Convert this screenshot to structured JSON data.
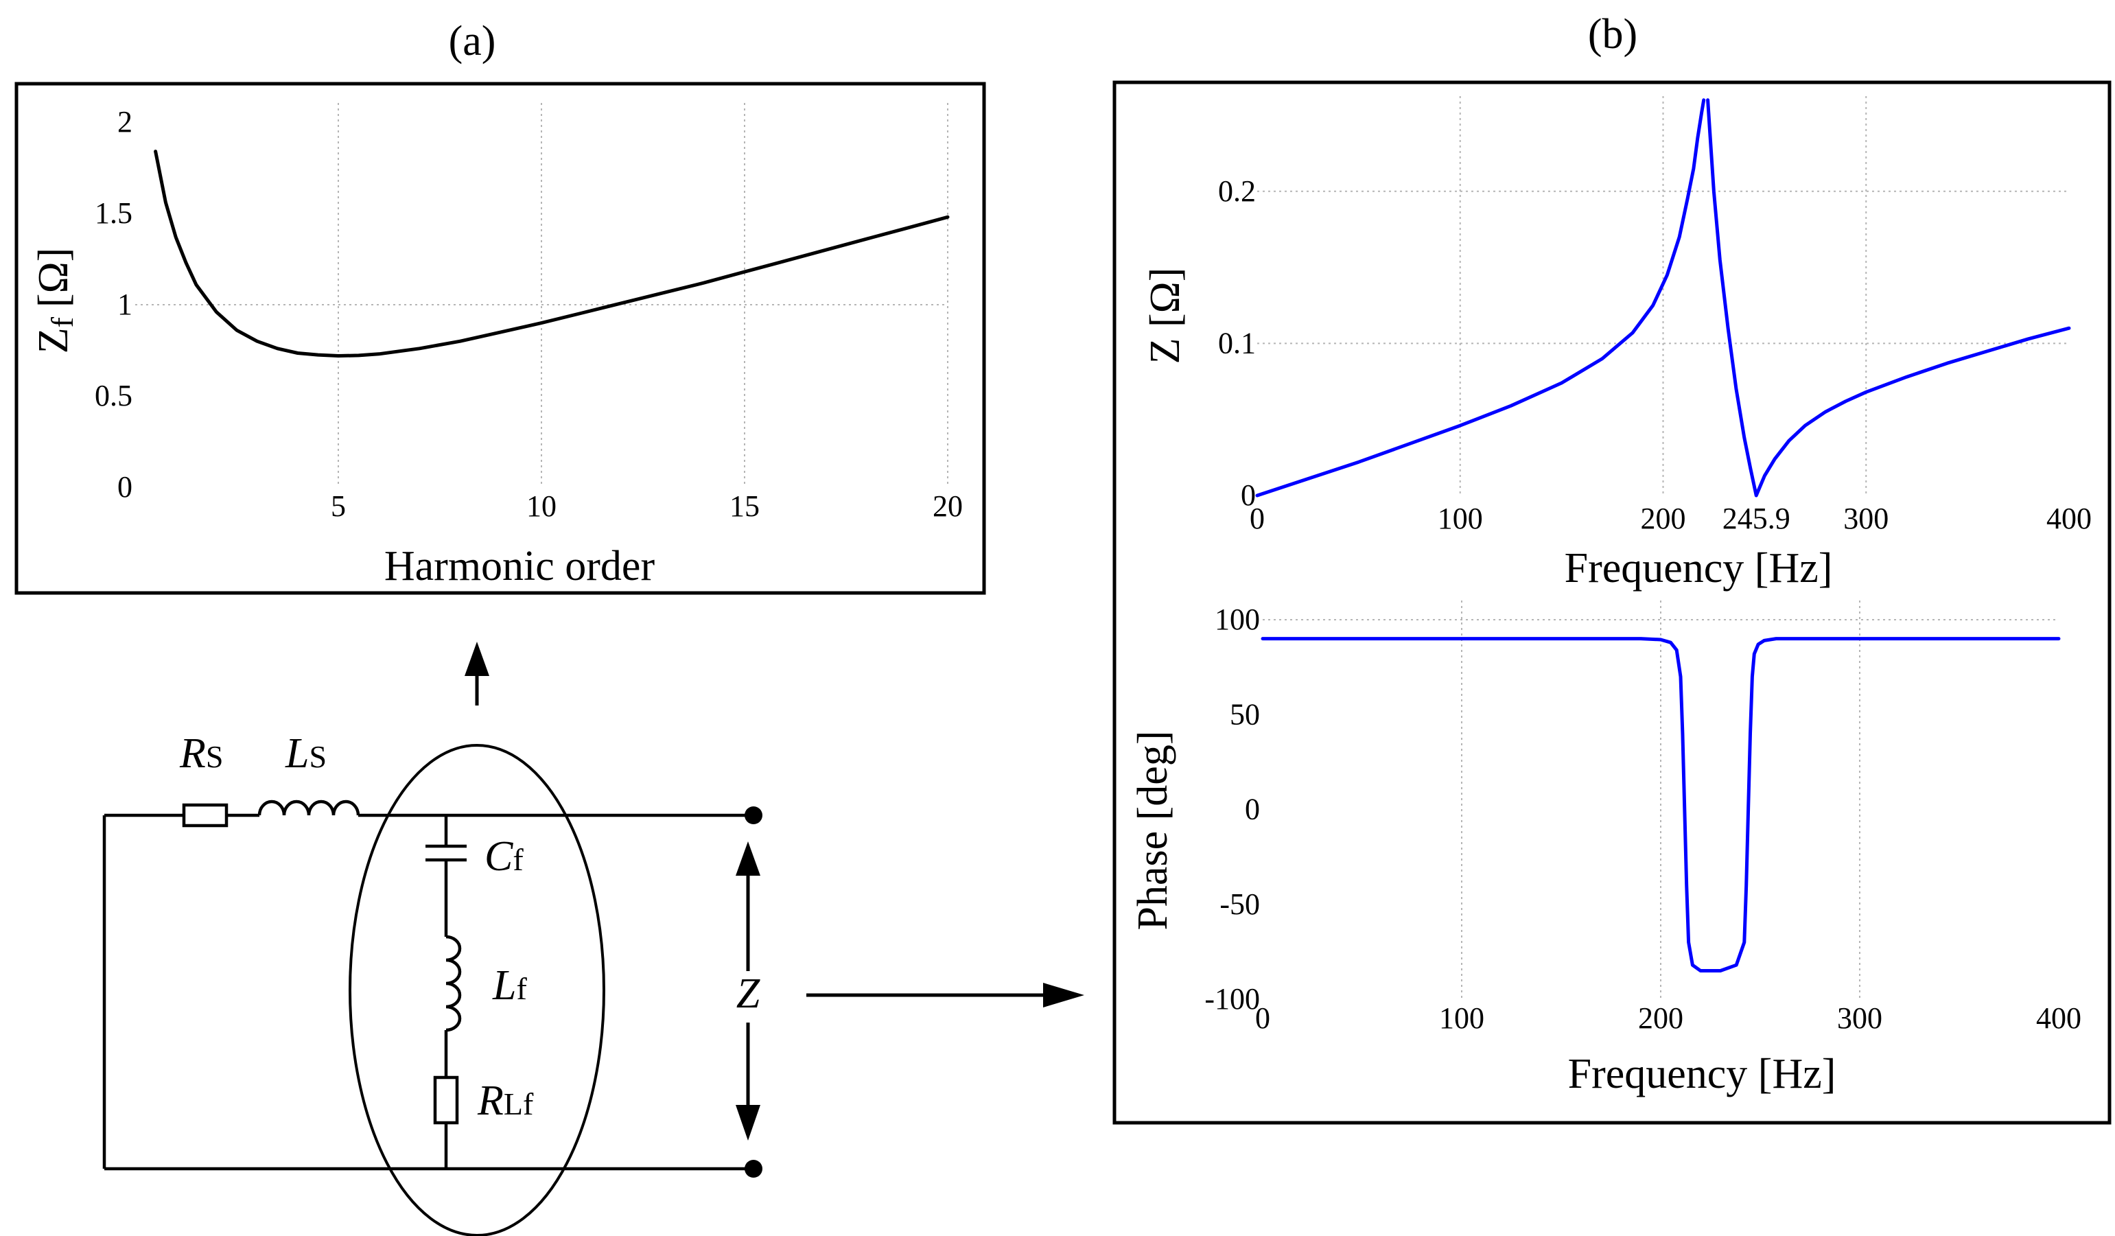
{
  "panel_labels": {
    "a": "(a)",
    "b": "(b)"
  },
  "circuit": {
    "rs": {
      "main": "R",
      "sub": "S"
    },
    "ls": {
      "main": "L",
      "sub": "S"
    },
    "cf": {
      "main": "C",
      "sub": "f"
    },
    "lf": {
      "main": "L",
      "sub": "f"
    },
    "rlf": {
      "main": "R",
      "sub": "Lf"
    },
    "z": "Z"
  },
  "colors": {
    "curve_a": "#000000",
    "curve_b": "#0000ff",
    "frame": "#000000",
    "grid": "#b5b5b5"
  },
  "chart_data": [
    {
      "id": "a",
      "type": "line",
      "xlabel": "Harmonic order",
      "ylabel": {
        "main": "Z",
        "sub": "f",
        "unit": "[Ω]"
      },
      "xlim": [
        0,
        20
      ],
      "ylim": [
        0,
        2
      ],
      "xticks": [
        5,
        10,
        15,
        20
      ],
      "yticks": [
        0,
        0.5,
        1,
        1.5,
        2
      ],
      "ytick_labels": [
        "0",
        "0.5",
        "1",
        "1.5",
        "2"
      ],
      "xgrid": [
        5,
        10,
        15,
        20
      ],
      "ygrid": [
        1
      ],
      "series": [
        {
          "x": [
            0.5,
            0.75,
            1,
            1.25,
            1.5,
            2,
            2.5,
            3,
            3.5,
            4,
            4.5,
            5,
            5.5,
            6,
            7,
            8,
            9,
            10,
            11,
            12,
            13,
            14,
            15,
            16,
            17,
            18,
            19,
            20
          ],
          "values": [
            1.84,
            1.56,
            1.37,
            1.23,
            1.11,
            0.96,
            0.86,
            0.8,
            0.76,
            0.735,
            0.725,
            0.72,
            0.722,
            0.73,
            0.76,
            0.8,
            0.85,
            0.9,
            0.955,
            1.01,
            1.065,
            1.12,
            1.18,
            1.24,
            1.3,
            1.36,
            1.42,
            1.48
          ]
        }
      ]
    },
    {
      "id": "b-top",
      "type": "line",
      "xlabel": "Frequency [Hz]",
      "ylabel": "Z [Ω]",
      "xlim": [
        0,
        400
      ],
      "ylim": [
        0,
        0.25
      ],
      "xticks": [
        0,
        100,
        200,
        245.9,
        300,
        400
      ],
      "xtick_labels": [
        "0",
        "100",
        "200",
        "245.9",
        "300",
        "400"
      ],
      "yticks": [
        0,
        0.1,
        0.2
      ],
      "ytick_labels": [
        "0",
        "0.1",
        "0.2"
      ],
      "xgrid": [
        100,
        200,
        300
      ],
      "ygrid": [
        0.1,
        0.2
      ],
      "series": [
        {
          "x": [
            0,
            25,
            50,
            75,
            100,
            125,
            150,
            170,
            185,
            195,
            202,
            208,
            212,
            215,
            217,
            219,
            220
          ],
          "values": [
            0,
            0.011,
            0.022,
            0.034,
            0.046,
            0.059,
            0.074,
            0.09,
            0.107,
            0.125,
            0.145,
            0.17,
            0.195,
            0.215,
            0.235,
            0.252,
            0.26
          ]
        },
        {
          "x": [
            222,
            223,
            225,
            228,
            232,
            236,
            240,
            243,
            245.9,
            250,
            255,
            262,
            270,
            280,
            290,
            300,
            320,
            340,
            360,
            380,
            400
          ],
          "values": [
            0.26,
            0.24,
            0.2,
            0.155,
            0.11,
            0.07,
            0.038,
            0.018,
            0,
            0.013,
            0.024,
            0.036,
            0.046,
            0.055,
            0.062,
            0.068,
            0.078,
            0.087,
            0.095,
            0.103,
            0.11
          ]
        }
      ]
    },
    {
      "id": "b-bottom",
      "type": "line",
      "xlabel": "Frequency [Hz]",
      "ylabel": "Phase [deg]",
      "xlim": [
        0,
        400
      ],
      "ylim": [
        -100,
        100
      ],
      "xticks": [
        0,
        100,
        200,
        300,
        400
      ],
      "xtick_labels": [
        "0",
        "100",
        "200",
        "300",
        "400"
      ],
      "yticks": [
        -100,
        -50,
        0,
        50,
        100
      ],
      "ytick_labels": [
        "-100",
        "-50",
        "0",
        "50",
        "100"
      ],
      "xgrid": [
        100,
        200,
        300
      ],
      "ygrid": [
        100
      ],
      "series": [
        {
          "x": [
            0,
            100,
            190,
            200,
            205,
            208,
            210,
            211,
            212,
            213,
            214,
            216,
            220,
            230,
            238,
            242,
            243,
            244,
            245,
            246,
            247,
            249,
            252,
            258,
            270,
            300,
            400
          ],
          "values": [
            90,
            90,
            90,
            89.5,
            88,
            84,
            70,
            40,
            0,
            -40,
            -70,
            -82,
            -85,
            -85,
            -82,
            -70,
            -40,
            0,
            40,
            70,
            82,
            87,
            89,
            90,
            90,
            90,
            90
          ]
        }
      ]
    }
  ]
}
